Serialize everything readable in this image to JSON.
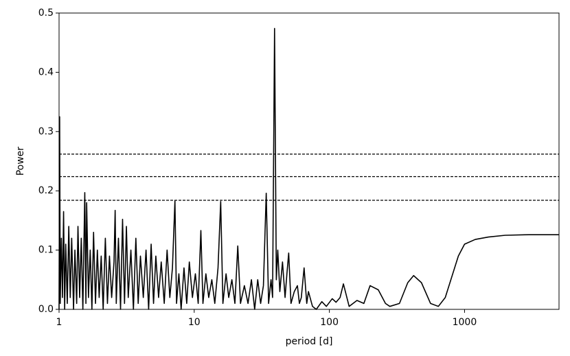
{
  "chart_data": {
    "type": "line",
    "xlabel": "period [d]",
    "ylabel": "Power",
    "xscale": "log",
    "color": "#000000",
    "x": [
      1.0,
      1.01,
      1.02,
      1.04,
      1.06,
      1.08,
      1.1,
      1.12,
      1.15,
      1.18,
      1.21,
      1.24,
      1.28,
      1.31,
      1.35,
      1.38,
      1.42,
      1.46,
      1.5,
      1.55,
      1.58,
      1.6,
      1.65,
      1.7,
      1.75,
      1.8,
      1.86,
      1.92,
      1.98,
      2.05,
      2.12,
      2.2,
      2.28,
      2.36,
      2.45,
      2.55,
      2.6,
      2.65,
      2.75,
      2.85,
      2.95,
      3.05,
      3.15,
      3.25,
      3.4,
      3.55,
      3.7,
      3.85,
      4.0,
      4.2,
      4.4,
      4.6,
      4.8,
      5.0,
      5.2,
      5.45,
      5.7,
      6.0,
      6.3,
      6.6,
      6.9,
      7.2,
      7.4,
      7.7,
      8.0,
      8.4,
      8.8,
      9.2,
      9.7,
      10.2,
      10.7,
      11.2,
      11.6,
      12.2,
      12.8,
      13.5,
      14.2,
      15.0,
      15.7,
      16.3,
      17.2,
      18.0,
      19.0,
      20.0,
      21.0,
      22.0,
      23.5,
      25.0,
      26.5,
      28.0,
      29.5,
      31.0,
      32.5,
      34.1,
      35.5,
      37.0,
      38.0,
      39.3,
      40.5,
      41.5,
      43.0,
      45.0,
      47.0,
      48.5,
      50.0,
      52.0,
      55.0,
      58.0,
      60.0,
      62.0,
      65.0,
      68.0,
      70.0,
      75.0,
      80.0,
      88.0,
      95.0,
      105.0,
      112.0,
      120.0,
      127.0,
      140.0,
      160.0,
      180.0,
      200.0,
      230.0,
      260.0,
      280.0,
      330.0,
      380.0,
      420.0,
      480.0,
      560.0,
      640.0,
      720.0,
      900.0,
      1000.0,
      1200.0,
      1500.0,
      2000.0,
      3000.0,
      5000.0
    ],
    "values": [
      0.0,
      0.325,
      0.01,
      0.12,
      0.02,
      0.165,
      0.0,
      0.11,
      0.01,
      0.14,
      0.02,
      0.12,
      0.0,
      0.1,
      0.01,
      0.14,
      0.02,
      0.12,
      0.0,
      0.197,
      0.01,
      0.18,
      0.02,
      0.1,
      0.0,
      0.13,
      0.01,
      0.1,
      0.02,
      0.09,
      0.0,
      0.12,
      0.01,
      0.09,
      0.02,
      0.08,
      0.167,
      0.01,
      0.12,
      0.0,
      0.152,
      0.01,
      0.14,
      0.02,
      0.1,
      0.0,
      0.12,
      0.01,
      0.09,
      0.02,
      0.1,
      0.0,
      0.11,
      0.01,
      0.09,
      0.02,
      0.08,
      0.01,
      0.1,
      0.02,
      0.07,
      0.183,
      0.01,
      0.06,
      0.0,
      0.07,
      0.01,
      0.08,
      0.02,
      0.06,
      0.01,
      0.133,
      0.01,
      0.06,
      0.02,
      0.05,
      0.01,
      0.07,
      0.182,
      0.01,
      0.06,
      0.02,
      0.05,
      0.01,
      0.107,
      0.01,
      0.04,
      0.01,
      0.05,
      0.0,
      0.05,
      0.01,
      0.04,
      0.196,
      0.01,
      0.05,
      0.02,
      0.474,
      0.05,
      0.1,
      0.03,
      0.08,
      0.02,
      0.06,
      0.095,
      0.01,
      0.03,
      0.04,
      0.01,
      0.02,
      0.07,
      0.01,
      0.03,
      0.005,
      0.0,
      0.013,
      0.005,
      0.018,
      0.012,
      0.02,
      0.043,
      0.005,
      0.015,
      0.01,
      0.04,
      0.033,
      0.01,
      0.005,
      0.01,
      0.045,
      0.057,
      0.045,
      0.01,
      0.005,
      0.02,
      0.09,
      0.11,
      0.118,
      0.122,
      0.125,
      0.126,
      0.126
    ],
    "hlines": [
      0.262,
      0.224,
      0.184
    ],
    "xlim": [
      1,
      5000
    ],
    "xticks": [
      1,
      10,
      100,
      1000
    ],
    "ylim": [
      0,
      0.5
    ],
    "yticks": [
      {
        "value": 0,
        "label": "0.0"
      },
      0.1,
      0.2,
      0.3,
      0.4,
      0.5
    ]
  }
}
